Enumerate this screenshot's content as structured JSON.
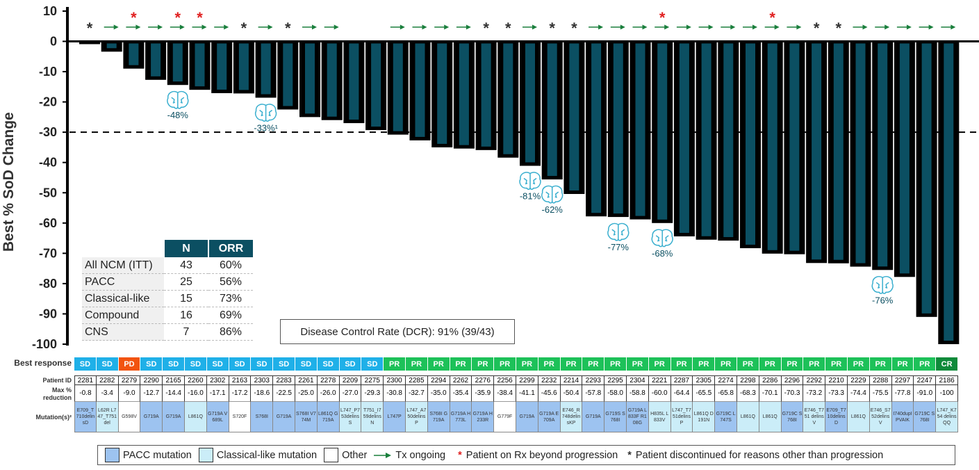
{
  "chart_data": {
    "type": "bar",
    "ylabel": "Best % SoD Change",
    "ylim": [
      -100,
      10
    ],
    "yticks": [
      "10",
      "0",
      "-10",
      "-20",
      "-30",
      "-40",
      "-50",
      "-60",
      "-70",
      "-80",
      "-90",
      "-100"
    ],
    "reference_line": -30,
    "bar_color": "#0B4F62",
    "patients": [
      {
        "id": "2281",
        "value": -0.8,
        "response": "SD",
        "mutation": "E709_T710delinsD",
        "type": "PACC",
        "marker": "discontinued"
      },
      {
        "id": "2282",
        "value": -3.4,
        "response": "SD",
        "mutation": "L62R L747_T751del",
        "type": "Classical-like",
        "marker": "ongoing"
      },
      {
        "id": "2279",
        "value": -9.0,
        "response": "PD",
        "mutation": "G598V",
        "type": "Other",
        "marker": "ongoing",
        "beyond_progression": true
      },
      {
        "id": "2290",
        "value": -12.7,
        "response": "SD",
        "mutation": "G719A",
        "type": "PACC",
        "marker": "ongoing"
      },
      {
        "id": "2165",
        "value": -14.4,
        "response": "SD",
        "mutation": "G719A",
        "type": "PACC",
        "marker": "ongoing",
        "beyond_progression": true,
        "cns": "-48%"
      },
      {
        "id": "2260",
        "value": -16.0,
        "response": "SD",
        "mutation": "L861Q",
        "type": "Classical-like",
        "marker": "ongoing",
        "beyond_progression": true
      },
      {
        "id": "2302",
        "value": -17.1,
        "response": "SD",
        "mutation": "G719A V689L",
        "type": "PACC",
        "marker": "ongoing"
      },
      {
        "id": "2163",
        "value": -17.2,
        "response": "SD",
        "mutation": "S720F",
        "type": "Other",
        "marker": "discontinued"
      },
      {
        "id": "2303",
        "value": -18.6,
        "response": "SD",
        "mutation": "S768I",
        "type": "PACC",
        "marker": "ongoing",
        "cns": "-33%¹"
      },
      {
        "id": "2283",
        "value": -22.5,
        "response": "SD",
        "mutation": "G719A",
        "type": "PACC",
        "marker": "discontinued"
      },
      {
        "id": "2261",
        "value": -25.0,
        "response": "SD",
        "mutation": "S768I V774M",
        "type": "PACC",
        "marker": "ongoing"
      },
      {
        "id": "2278",
        "value": -26.0,
        "response": "SD",
        "mutation": "L861Q G719A",
        "type": "PACC",
        "marker": "ongoing"
      },
      {
        "id": "2209",
        "value": -27.0,
        "response": "SD",
        "mutation": "L747_P753delinsS",
        "type": "Classical-like",
        "marker": "none"
      },
      {
        "id": "2275",
        "value": -29.3,
        "response": "SD",
        "mutation": "T751_I759delinsN",
        "type": "Classical-like",
        "marker": "none"
      },
      {
        "id": "2300",
        "value": -30.8,
        "response": "PR",
        "mutation": "L747P",
        "type": "PACC",
        "marker": "ongoing"
      },
      {
        "id": "2285",
        "value": -32.7,
        "response": "PR",
        "mutation": "L747_A750delinsP",
        "type": "Classical-like",
        "marker": "ongoing"
      },
      {
        "id": "2294",
        "value": -35.0,
        "response": "PR",
        "mutation": "S768I G719A",
        "type": "PACC",
        "marker": "ongoing"
      },
      {
        "id": "2262",
        "value": -35.4,
        "response": "PR",
        "mutation": "G719A H773L",
        "type": "PACC",
        "marker": "ongoing"
      },
      {
        "id": "2276",
        "value": -35.9,
        "response": "PR",
        "mutation": "G719A H233R",
        "type": "PACC",
        "marker": "discontinued"
      },
      {
        "id": "2256",
        "value": -38.4,
        "response": "PR",
        "mutation": "G779F",
        "type": "Other",
        "marker": "discontinued"
      },
      {
        "id": "2299",
        "value": -41.1,
        "response": "PR",
        "mutation": "G719A",
        "type": "PACC",
        "marker": "ongoing",
        "cns": "-81%"
      },
      {
        "id": "2232",
        "value": -45.6,
        "response": "PR",
        "mutation": "G719A E709A",
        "type": "PACC",
        "marker": "discontinued",
        "cns": "-62%"
      },
      {
        "id": "2214",
        "value": -50.4,
        "response": "PR",
        "mutation": "E746_R748delinsKP",
        "type": "Classical-like",
        "marker": "discontinued"
      },
      {
        "id": "2293",
        "value": -57.8,
        "response": "PR",
        "mutation": "G719A",
        "type": "PACC",
        "marker": "ongoing"
      },
      {
        "id": "2295",
        "value": -58.0,
        "response": "PR",
        "mutation": "G719S S768I",
        "type": "PACC",
        "marker": "ongoing",
        "cns": "-77%"
      },
      {
        "id": "2304",
        "value": -58.8,
        "response": "PR",
        "mutation": "G719A L833F R108G",
        "type": "PACC",
        "marker": "ongoing"
      },
      {
        "id": "2221",
        "value": -60.0,
        "response": "PR",
        "mutation": "H835L L833V",
        "type": "Classical-like",
        "marker": "ongoing",
        "beyond_progression": true,
        "cns": "-68%"
      },
      {
        "id": "2287",
        "value": -64.4,
        "response": "PR",
        "mutation": "L747_T751delinsP",
        "type": "Classical-like",
        "marker": "ongoing"
      },
      {
        "id": "2305",
        "value": -65.5,
        "response": "PR",
        "mutation": "L861Q D191N",
        "type": "Classical-like",
        "marker": "ongoing"
      },
      {
        "id": "2274",
        "value": -65.8,
        "response": "PR",
        "mutation": "G719C L747S",
        "type": "PACC",
        "marker": "ongoing"
      },
      {
        "id": "2298",
        "value": -68.3,
        "response": "PR",
        "mutation": "L861Q",
        "type": "Classical-like",
        "marker": "ongoing"
      },
      {
        "id": "2286",
        "value": -70.1,
        "response": "PR",
        "mutation": "L861Q",
        "type": "Classical-like",
        "marker": "ongoing",
        "beyond_progression": true
      },
      {
        "id": "2296",
        "value": -70.3,
        "response": "PR",
        "mutation": "G719C S768I",
        "type": "PACC",
        "marker": "ongoing"
      },
      {
        "id": "2292",
        "value": -73.2,
        "response": "PR",
        "mutation": "E746_T751 delinsV",
        "type": "Classical-like",
        "marker": "discontinued"
      },
      {
        "id": "2210",
        "value": -73.3,
        "response": "PR",
        "mutation": "E709_T710delinsD",
        "type": "PACC",
        "marker": "discontinued"
      },
      {
        "id": "2229",
        "value": -74.4,
        "response": "PR",
        "mutation": "L861Q",
        "type": "Classical-like",
        "marker": "ongoing"
      },
      {
        "id": "2288",
        "value": -75.5,
        "response": "PR",
        "mutation": "E746_S752delinsV",
        "type": "Classical-like",
        "marker": "ongoing",
        "cns": "-76%"
      },
      {
        "id": "2297",
        "value": -77.8,
        "response": "PR",
        "mutation": "I740dupIPVAIK",
        "type": "PACC",
        "marker": "ongoing"
      },
      {
        "id": "2247",
        "value": -91.0,
        "response": "PR",
        "mutation": "G719C S768I",
        "type": "PACC",
        "marker": "ongoing"
      },
      {
        "id": "2186",
        "value": -100,
        "response": "CR",
        "mutation": "L747_K754 delinsQQ",
        "type": "Classical-like",
        "marker": "ongoing"
      }
    ]
  },
  "response_colors": {
    "SD": "#1FB0E8",
    "PD": "#F2530F",
    "PR": "#1DC159",
    "CR": "#0E8A3A"
  },
  "mutation_colors": {
    "PACC": "#9DC3F0",
    "Classical-like": "#CBEDF8",
    "Other": "#FFFFFF"
  },
  "row_labels": {
    "response": "Best response",
    "patient_id": "Patient ID",
    "max_reduction": "Max % reduction",
    "mutation": "Mutation(s)²"
  },
  "inset_table": {
    "headers": [
      "N",
      "ORR"
    ],
    "rows": [
      {
        "label": "All NCM (ITT)",
        "n": "43",
        "orr": "60%"
      },
      {
        "label": "PACC",
        "n": "25",
        "orr": "56%"
      },
      {
        "label": "Classical-like",
        "n": "15",
        "orr": "73%"
      },
      {
        "label": "Compound",
        "n": "16",
        "orr": "69%"
      },
      {
        "label": "CNS",
        "n": "7",
        "orr": "86%"
      }
    ]
  },
  "dcr_text": "Disease Control Rate (DCR): 91% (39/43)",
  "legend": {
    "pacc": "PACC mutation",
    "classical": "Classical-like mutation",
    "other": "Other",
    "ongoing": "Tx ongoing",
    "beyond": "Patient on Rx beyond progression",
    "discontinued": "Patient discontinued for reasons other than progression"
  }
}
